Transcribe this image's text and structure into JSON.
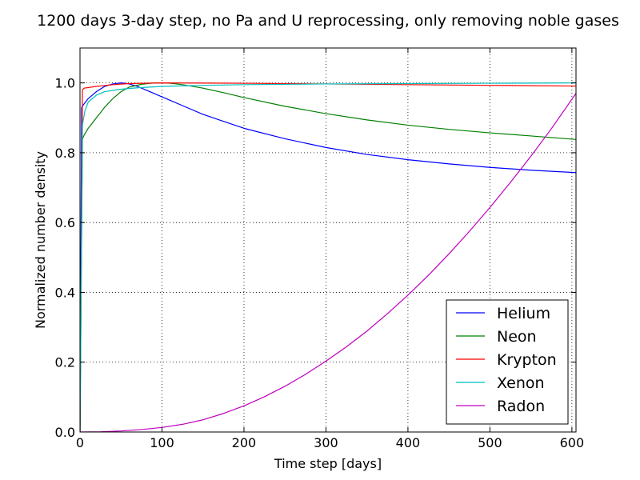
{
  "chart_data": {
    "type": "line",
    "title": "1200 days 3-day step, no Pa and U reprocessing, only removing noble gases",
    "xlabel": "Time step [days]",
    "ylabel": "Normalized number density",
    "xlim": [
      0,
      605
    ],
    "ylim": [
      0,
      1.1
    ],
    "xticks": [
      0,
      100,
      200,
      300,
      400,
      500,
      600
    ],
    "yticks": [
      0.0,
      0.2,
      0.4,
      0.6,
      0.8,
      1.0
    ],
    "xtick_labels": [
      "0",
      "100",
      "200",
      "300",
      "400",
      "500",
      "600"
    ],
    "ytick_labels": [
      "0.0",
      "0.2",
      "0.4",
      "0.6",
      "0.8",
      "1.0"
    ],
    "grid": true,
    "legend_position": "lower-right",
    "series": [
      {
        "name": "Helium",
        "color": "#0000ff",
        "x": [
          0,
          2,
          5,
          10,
          20,
          30,
          40,
          50,
          55,
          60,
          70,
          80,
          100,
          125,
          150,
          175,
          200,
          250,
          300,
          350,
          400,
          450,
          500,
          550,
          605
        ],
        "y": [
          0.0,
          0.93,
          0.94,
          0.955,
          0.975,
          0.99,
          0.997,
          1.0,
          0.999,
          0.997,
          0.99,
          0.98,
          0.96,
          0.935,
          0.91,
          0.89,
          0.87,
          0.84,
          0.815,
          0.795,
          0.78,
          0.768,
          0.758,
          0.75,
          0.743
        ]
      },
      {
        "name": "Neon",
        "color": "#008000",
        "x": [
          0,
          3,
          5,
          10,
          20,
          30,
          40,
          50,
          60,
          75,
          90,
          100,
          110,
          125,
          150,
          175,
          200,
          250,
          300,
          350,
          400,
          450,
          500,
          550,
          605
        ],
        "y": [
          0.0,
          0.84,
          0.85,
          0.87,
          0.9,
          0.93,
          0.955,
          0.975,
          0.988,
          0.996,
          1.0,
          1.0,
          0.999,
          0.995,
          0.985,
          0.972,
          0.958,
          0.933,
          0.912,
          0.894,
          0.879,
          0.867,
          0.857,
          0.848,
          0.838
        ]
      },
      {
        "name": "Krypton",
        "color": "#ff0000",
        "x": [
          0,
          3,
          5,
          20,
          40,
          60,
          100,
          200,
          300,
          400,
          500,
          605
        ],
        "y": [
          0.0,
          0.98,
          0.985,
          0.99,
          0.995,
          0.998,
          1.0,
          0.999,
          0.997,
          0.995,
          0.993,
          0.991
        ]
      },
      {
        "name": "Xenon",
        "color": "#00bfbf",
        "x": [
          0,
          3,
          6,
          10,
          20,
          30,
          50,
          70,
          100,
          150,
          200,
          300,
          400,
          500,
          605
        ],
        "y": [
          0.0,
          0.88,
          0.92,
          0.945,
          0.965,
          0.975,
          0.982,
          0.986,
          0.99,
          0.993,
          0.995,
          0.997,
          0.998,
          0.999,
          1.0
        ]
      },
      {
        "name": "Radon",
        "color": "#bf00bf",
        "x": [
          0,
          25,
          50,
          75,
          100,
          125,
          150,
          175,
          200,
          225,
          250,
          275,
          300,
          325,
          350,
          375,
          400,
          425,
          450,
          475,
          500,
          525,
          550,
          575,
          605
        ],
        "y": [
          0.0,
          0.0006,
          0.003,
          0.007,
          0.013,
          0.022,
          0.035,
          0.053,
          0.075,
          0.101,
          0.131,
          0.165,
          0.203,
          0.244,
          0.289,
          0.339,
          0.392,
          0.449,
          0.51,
          0.575,
          0.643,
          0.715,
          0.79,
          0.869,
          0.97
        ]
      }
    ]
  }
}
